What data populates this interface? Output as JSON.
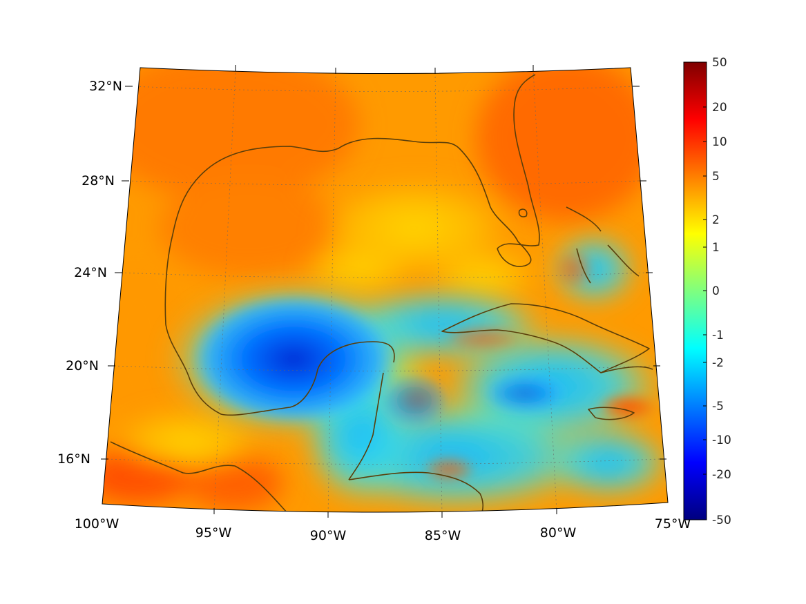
{
  "map": {
    "lon_labels": [
      "100°W",
      "95°W",
      "90°W",
      "85°W",
      "80°W",
      "75°W"
    ],
    "lat_labels": [
      "32°N",
      "28°N",
      "24°N",
      "20°N",
      "16°N"
    ],
    "extent": {
      "lon_min": -100,
      "lon_max": -75,
      "lat_min": 14,
      "lat_max": 33
    },
    "projection": "conic",
    "grid": "dotted graticule every 5° lon / 4° lat",
    "coastline_color": "#5a3e0a",
    "regions": [
      "Gulf of Mexico",
      "Caribbean Sea",
      "Florida",
      "Cuba",
      "Yucatan",
      "Jamaica",
      "Bahamas"
    ]
  },
  "colorbar": {
    "tick_labels": [
      "50",
      "20",
      "10",
      "5",
      "2",
      "1",
      "0",
      "-1",
      "-2",
      "-5",
      "-10",
      "-20",
      "-50"
    ],
    "colormap": "jet",
    "colors": [
      "#00007f",
      "#0000ff",
      "#007fff",
      "#00ffff",
      "#7fff7f",
      "#ffff00",
      "#ff7f00",
      "#ff0000",
      "#7f0000"
    ]
  }
}
